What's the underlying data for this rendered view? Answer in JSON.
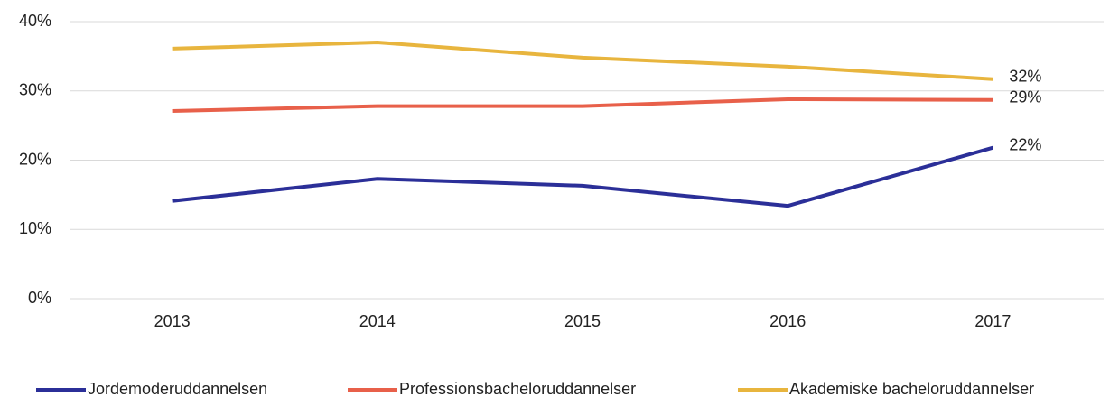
{
  "chart_data": {
    "type": "line",
    "categories": [
      "2013",
      "2014",
      "2015",
      "2016",
      "2017"
    ],
    "series": [
      {
        "name": "Jordemoderuddannelsen",
        "color": "#2b2f98",
        "values": [
          14.1,
          17.3,
          16.3,
          13.4,
          21.8
        ],
        "value_labels": [
          null,
          null,
          null,
          null,
          "22%"
        ]
      },
      {
        "name": "Professionsbacheloruddannelser",
        "color": "#e8604a",
        "values": [
          27.1,
          27.8,
          27.8,
          28.8,
          28.7
        ],
        "value_labels": [
          null,
          null,
          null,
          null,
          "29%"
        ]
      },
      {
        "name": "Akademiske bacheloruddannelser",
        "color": "#e8b53e",
        "values": [
          36.1,
          37.0,
          34.8,
          33.5,
          31.7
        ],
        "value_labels": [
          null,
          null,
          null,
          null,
          "32%"
        ]
      }
    ],
    "ylim": [
      0,
      40
    ],
    "yticks": [
      {
        "value": 0,
        "label": "0%"
      },
      {
        "value": 10,
        "label": "10%"
      },
      {
        "value": 20,
        "label": "20%"
      },
      {
        "value": 30,
        "label": "30%"
      },
      {
        "value": 40,
        "label": "40%"
      }
    ],
    "grid": true,
    "legend": "bottom"
  }
}
